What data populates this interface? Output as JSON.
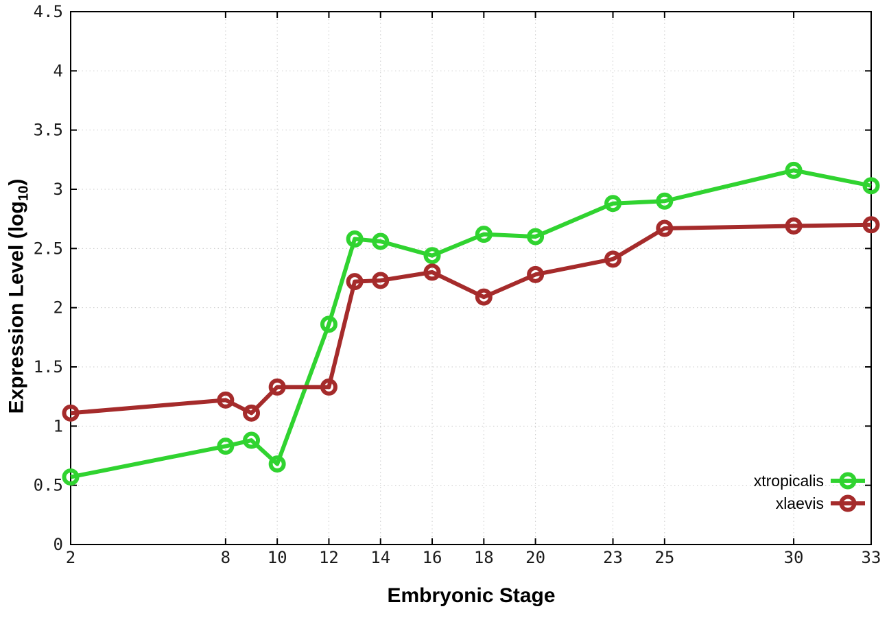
{
  "figure": {
    "background": "#ffffff",
    "grid_color": "#c9c9c9",
    "border_color": "#000000"
  },
  "chart_data": {
    "type": "line",
    "title": "",
    "xlabel": "Embryonic Stage",
    "ylabel": "Expression Level (log10)",
    "ylabel_parts": {
      "main": "Expression Level (log",
      "sub": "10",
      "close": ")"
    },
    "xlim": [
      2,
      33
    ],
    "ylim": [
      0,
      4.5
    ],
    "grid": true,
    "legend_position": "bottom-right",
    "xticks": [
      2,
      8,
      10,
      12,
      14,
      16,
      18,
      20,
      23,
      25,
      30,
      33
    ],
    "xtick_labels": [
      "2",
      "8",
      "10",
      "12",
      "14",
      "16",
      "18",
      "20",
      "23",
      "25",
      "30",
      "33"
    ],
    "yticks": [
      0,
      0.5,
      1,
      1.5,
      2,
      2.5,
      3,
      3.5,
      4,
      4.5
    ],
    "ytick_labels": [
      "0",
      "0.5",
      "1",
      "1.5",
      "2",
      "2.5",
      "3",
      "3.5",
      "4",
      "4.5"
    ],
    "x": [
      2,
      8,
      9,
      10,
      12,
      13,
      14,
      16,
      18,
      20,
      23,
      25,
      30,
      33
    ],
    "series": [
      {
        "name": "xtropicalis",
        "color": "#30d330",
        "marker": "open-circle",
        "values": [
          0.57,
          0.83,
          0.88,
          0.68,
          1.86,
          2.58,
          2.56,
          2.44,
          2.62,
          2.6,
          2.88,
          2.9,
          3.16,
          3.03
        ]
      },
      {
        "name": "xlaevis",
        "color": "#a52b2b",
        "marker": "open-circle",
        "values": [
          1.11,
          1.22,
          1.11,
          1.33,
          1.33,
          2.22,
          2.23,
          2.3,
          2.09,
          2.28,
          2.41,
          2.67,
          2.69,
          2.7
        ]
      }
    ]
  }
}
